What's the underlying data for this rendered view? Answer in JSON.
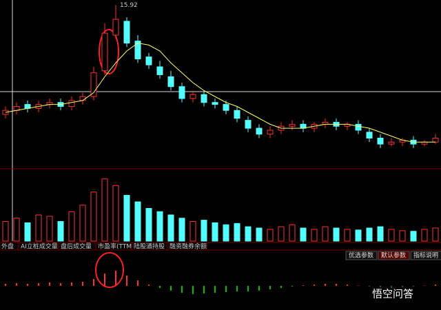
{
  "chart_data": {
    "type": "candlestick",
    "annotation": "15.92",
    "ylim": [
      8,
      16
    ],
    "open": [
      10.4,
      10.6,
      10.9,
      10.7,
      10.9,
      11.0,
      10.8,
      11.1,
      11.3,
      12.6,
      14.4,
      15.1,
      14.1,
      13.3,
      12.8,
      12.3,
      11.8,
      11.2,
      11.4,
      11.0,
      10.9,
      10.6,
      10.1,
      9.7,
      9.4,
      9.6,
      9.8,
      9.9,
      9.7,
      9.9,
      10.0,
      9.8,
      9.9,
      9.5,
      9.2,
      8.9,
      9.0,
      9.1,
      8.9,
      9.0
    ],
    "high": [
      10.8,
      11.0,
      11.1,
      11.1,
      11.2,
      11.2,
      11.3,
      11.5,
      12.8,
      15.0,
      15.92,
      15.3,
      14.4,
      13.5,
      13.1,
      12.6,
      12.0,
      11.6,
      11.6,
      11.2,
      11.1,
      10.8,
      10.3,
      9.9,
      9.8,
      10.0,
      10.1,
      10.1,
      10.0,
      10.2,
      10.2,
      10.0,
      10.1,
      9.7,
      9.4,
      9.2,
      9.2,
      9.3,
      9.1,
      9.4
    ],
    "low": [
      10.2,
      10.4,
      10.5,
      10.5,
      10.7,
      10.6,
      10.6,
      10.9,
      11.1,
      12.4,
      14.2,
      13.8,
      13.0,
      12.7,
      12.2,
      11.6,
      11.0,
      11.0,
      10.8,
      10.7,
      10.4,
      10.0,
      9.5,
      9.2,
      9.2,
      9.4,
      9.6,
      9.5,
      9.5,
      9.7,
      9.6,
      9.6,
      9.4,
      9.0,
      8.7,
      8.8,
      8.8,
      8.7,
      8.8,
      8.9
    ],
    "close": [
      10.6,
      10.8,
      10.7,
      10.9,
      11.0,
      10.8,
      11.1,
      11.3,
      12.5,
      14.5,
      15.2,
      14.0,
      13.2,
      12.9,
      12.4,
      11.8,
      11.2,
      11.4,
      11.0,
      10.9,
      10.6,
      10.2,
      9.7,
      9.4,
      9.6,
      9.8,
      9.9,
      9.7,
      9.9,
      10.0,
      9.8,
      9.9,
      9.6,
      9.2,
      8.9,
      9.0,
      9.1,
      8.9,
      9.0,
      9.2
    ],
    "ma": [
      10.5,
      10.6,
      10.7,
      10.8,
      10.9,
      10.9,
      11.0,
      11.1,
      11.5,
      12.3,
      13.0,
      13.6,
      14.0,
      13.9,
      13.6,
      13.0,
      12.5,
      12.0,
      11.6,
      11.3,
      11.0,
      10.8,
      10.5,
      10.2,
      9.9,
      9.7,
      9.7,
      9.7,
      9.8,
      9.9,
      9.9,
      9.9,
      9.8,
      9.7,
      9.5,
      9.3,
      9.1,
      9.0,
      9.0,
      9.0
    ],
    "volume": [
      30,
      35,
      28,
      40,
      38,
      30,
      45,
      55,
      75,
      95,
      85,
      70,
      60,
      50,
      45,
      40,
      35,
      30,
      32,
      28,
      25,
      27,
      22,
      20,
      18,
      22,
      25,
      20,
      18,
      22,
      20,
      18,
      17,
      20,
      22,
      18,
      16,
      15,
      18,
      20
    ],
    "volume_ylim": [
      0,
      100
    ],
    "macd": [
      0.3,
      0.4,
      0.3,
      0.4,
      0.5,
      0.4,
      0.5,
      0.6,
      1.0,
      1.8,
      2.2,
      1.5,
      0.8,
      0.2,
      -0.3,
      -0.7,
      -1.0,
      -1.2,
      -1.1,
      -1.0,
      -0.9,
      -0.8,
      -0.8,
      -0.7,
      -0.5,
      -0.3,
      -0.1,
      0.1,
      0.2,
      0.3,
      0.3,
      0.2,
      0.1,
      -0.1,
      -0.2,
      -0.3,
      -0.2,
      -0.1,
      0.1,
      0.2
    ],
    "macd_ylim": [
      -3,
      3
    ],
    "up_color": "#ff3030",
    "down_color": "#54ffff"
  },
  "tabs": [
    "外盘",
    "AI立桩成交量",
    "盘后成交量",
    "市盈率(TTM)",
    "陆股通持股",
    "融资融券余额"
  ],
  "buttons": [
    "优选参数",
    "默认参数",
    "指标说明"
  ],
  "watermark": "悟空问答"
}
